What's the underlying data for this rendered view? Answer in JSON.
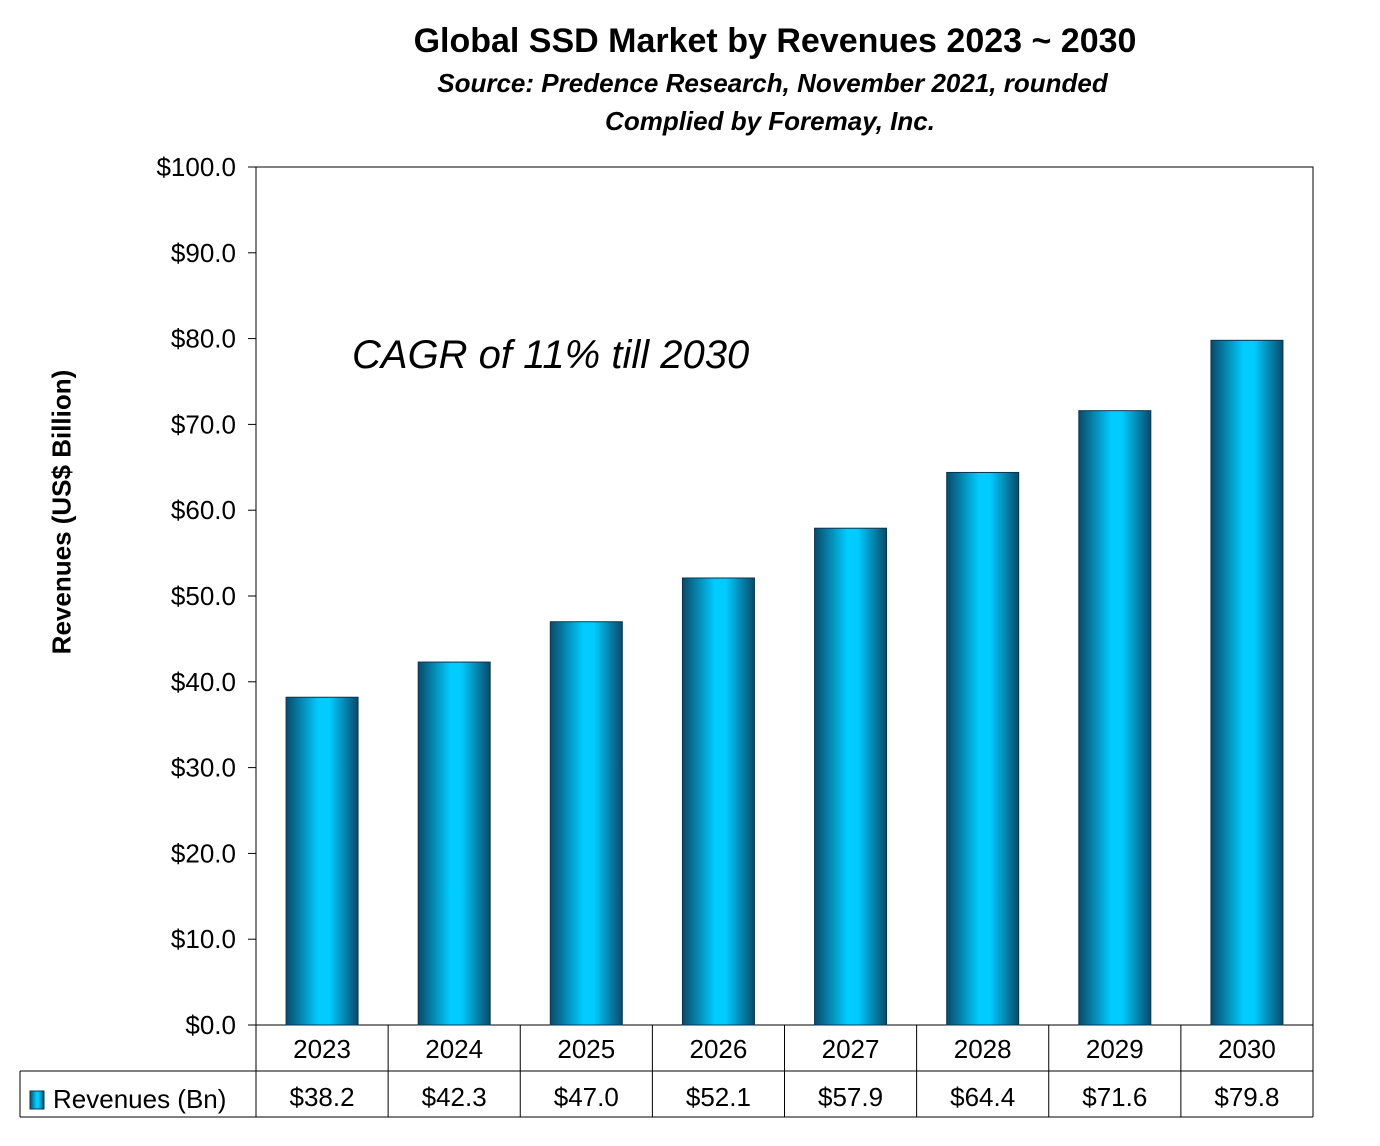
{
  "chart_data": {
    "type": "bar",
    "title": "Global SSD Market by Revenues 2023 ~ 2030",
    "subtitle": "Source: Predence Research, November 2021, rounded",
    "subtitle2": "Complied by Foremay, Inc.",
    "ylabel": "Revenues (US$ Billion)",
    "xlabel": "",
    "categories": [
      "2023",
      "2024",
      "2025",
      "2026",
      "2027",
      "2028",
      "2029",
      "2030"
    ],
    "series": [
      {
        "name": "Revenues (Bn)",
        "values": [
          38.2,
          42.3,
          47.0,
          52.1,
          57.9,
          64.4,
          71.6,
          79.8
        ],
        "value_labels": [
          "$38.2",
          "$42.3",
          "$47.0",
          "$52.1",
          "$57.9",
          "$64.4",
          "$71.6",
          "$79.8"
        ]
      }
    ],
    "ylim": [
      0,
      100
    ],
    "yticks": [
      0,
      10,
      20,
      30,
      40,
      50,
      60,
      70,
      80,
      90,
      100
    ],
    "ytick_labels": [
      "$0.0",
      "$10.0",
      "$20.0",
      "$30.0",
      "$40.0",
      "$50.0",
      "$60.0",
      "$70.0",
      "$80.0",
      "$90.0",
      "$100.0"
    ],
    "annotation": "CAGR of 11% till 2030",
    "grid": false,
    "legend": "data-table",
    "colors": {
      "bar_light": "#00CCFF",
      "bar_dark": "#0A4A6A",
      "bar_mid": "#0096C8"
    }
  }
}
